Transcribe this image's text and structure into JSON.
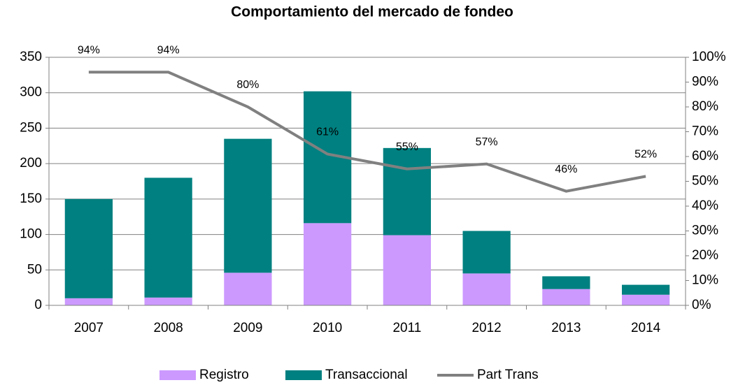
{
  "chart_data": {
    "type": "bar",
    "title": "Comportamiento del mercado de fondeo",
    "categories": [
      "2007",
      "2008",
      "2009",
      "2010",
      "2011",
      "2012",
      "2013",
      "2014"
    ],
    "series": [
      {
        "name": "Registro",
        "color": "#cc99ff",
        "values": [
          10,
          11,
          46,
          116,
          99,
          45,
          23,
          15
        ]
      },
      {
        "name": "Transaccional",
        "color": "#008080",
        "values": [
          140,
          169,
          189,
          186,
          123,
          60,
          18,
          14
        ]
      },
      {
        "name": "Part Trans",
        "color": "#808080",
        "type": "line",
        "axis": "y2",
        "values": [
          94,
          94,
          80,
          61,
          55,
          57,
          46,
          52
        ],
        "value_labels": [
          "94%",
          "94%",
          "80%",
          "61%",
          "55%",
          "57%",
          "46%",
          "52%"
        ]
      }
    ],
    "ylim": [
      0,
      350
    ],
    "yticks": [
      0,
      50,
      100,
      150,
      200,
      250,
      300,
      350
    ],
    "y2lim": [
      0,
      100
    ],
    "y2ticks": [
      {
        "value": 0,
        "label": "0%"
      },
      {
        "value": 10,
        "label": "10%"
      },
      {
        "value": 20,
        "label": "20%"
      },
      {
        "value": 30,
        "label": "30%"
      },
      {
        "value": 40,
        "label": "40%"
      },
      {
        "value": 50,
        "label": "50%"
      },
      {
        "value": 60,
        "label": "60%"
      },
      {
        "value": 70,
        "label": "70%"
      },
      {
        "value": 80,
        "label": "80%"
      },
      {
        "value": 90,
        "label": "90%"
      },
      {
        "value": 100,
        "label": "100%"
      }
    ],
    "grid": true,
    "legend": "bottom"
  }
}
